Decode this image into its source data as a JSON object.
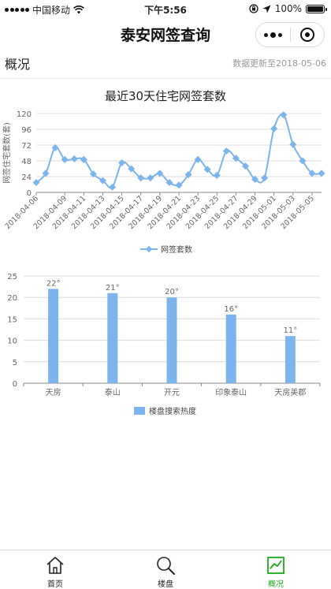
{
  "status_bar": {
    "carrier": "中国移动",
    "time": "下午5:56",
    "battery": "100%",
    "battery_level": 1.0
  },
  "nav": {
    "title": "泰安网签查询",
    "more_icon": "more-dots-icon",
    "close_icon": "target-circle-icon"
  },
  "header": {
    "section_title": "概况",
    "update_text": "数据更新至2018-05-06"
  },
  "colors": {
    "series": "#7cb5ec",
    "axis": "#666666",
    "grid": "#dcdcdc",
    "active_tab": "#1aad19"
  },
  "chart_data": [
    {
      "type": "line",
      "title": "最近30天住宅网签套数",
      "ylabel": "网签住宅套数(套)",
      "xlabel": "",
      "ylim": [
        0,
        120
      ],
      "yticks": [
        0,
        24,
        48,
        72,
        96,
        120
      ],
      "x": [
        "2018-04-06",
        "2018-04-07",
        "2018-04-08",
        "2018-04-09",
        "2018-04-10",
        "2018-04-11",
        "2018-04-12",
        "2018-04-13",
        "2018-04-14",
        "2018-04-15",
        "2018-04-16",
        "2018-04-17",
        "2018-04-18",
        "2018-04-19",
        "2018-04-20",
        "2018-04-21",
        "2018-04-22",
        "2018-04-23",
        "2018-04-24",
        "2018-04-25",
        "2018-04-26",
        "2018-04-27",
        "2018-04-28",
        "2018-04-29",
        "2018-04-30",
        "2018-05-01",
        "2018-05-02",
        "2018-05-03",
        "2018-05-04",
        "2018-05-05",
        "2018-05-06"
      ],
      "x_tick_labels": [
        "2018-04-06",
        "2018-04-09",
        "2018-04-11",
        "2018-04-13",
        "2018-04-15",
        "2018-04-17",
        "2018-04-19",
        "2018-04-21",
        "2018-04-23",
        "2018-04-25",
        "2018-04-27",
        "2018-04-29",
        "2018-05-01",
        "2018-05-03",
        "2018-05-05"
      ],
      "series": [
        {
          "name": "网签套数",
          "values": [
            15,
            29,
            68,
            50,
            51,
            50,
            28,
            18,
            8,
            45,
            36,
            22,
            22,
            29,
            15,
            11,
            27,
            50,
            35,
            26,
            63,
            52,
            40,
            20,
            22,
            97,
            118,
            73,
            48,
            29,
            29
          ]
        }
      ],
      "legend": "bottom-center",
      "grid": true
    },
    {
      "type": "bar",
      "title": "",
      "categories": [
        "天房",
        "泰山",
        "开元",
        "印象泰山",
        "天房美郡"
      ],
      "ylim": [
        0,
        25
      ],
      "yticks": [
        0,
        5,
        10,
        15,
        20,
        25
      ],
      "series": [
        {
          "name": "楼盘搜索热度",
          "values": [
            22,
            21,
            20,
            16,
            11
          ],
          "data_labels": [
            "22°",
            "21°",
            "20°",
            "16°",
            "11°"
          ]
        }
      ],
      "legend": "bottom-center",
      "grid": true
    }
  ],
  "tabs": [
    {
      "label": "首页",
      "icon": "home-icon",
      "active": false
    },
    {
      "label": "楼盘",
      "icon": "search-icon",
      "active": false
    },
    {
      "label": "概况",
      "icon": "trend-chart-icon",
      "active": true
    }
  ]
}
